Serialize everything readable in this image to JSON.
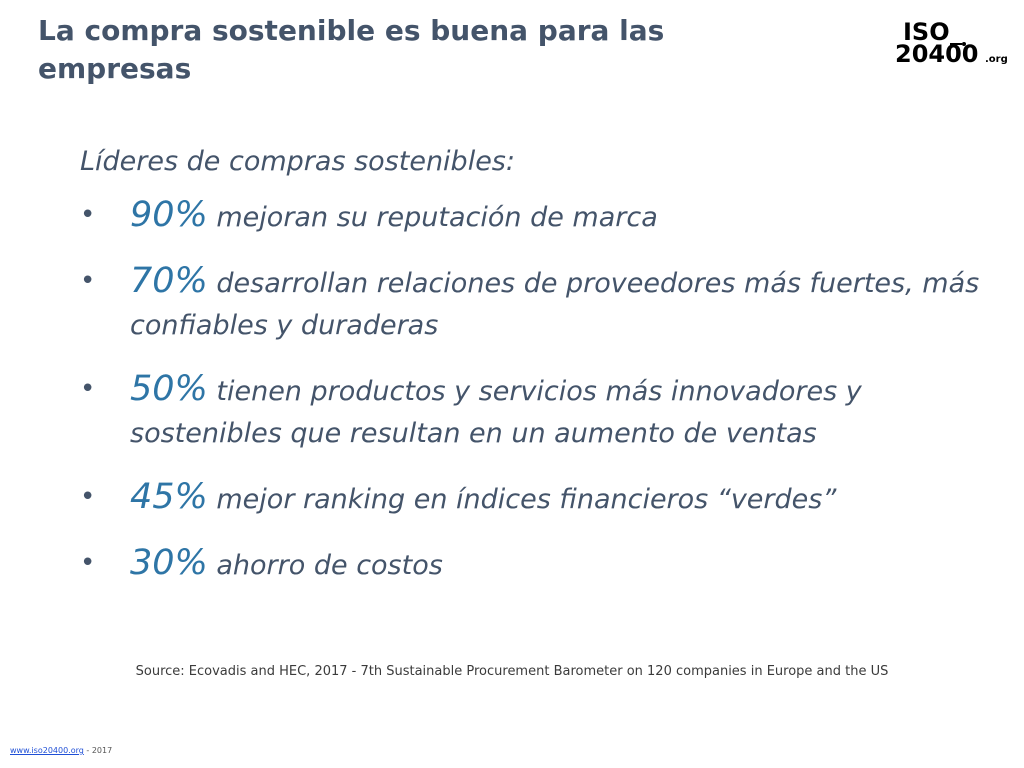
{
  "title": "La compra sostenible es buena para las empresas",
  "logo": {
    "line1": "ISO",
    "line2": "20400",
    "suffix": ".org"
  },
  "subheading": "Líderes de compras sostenibles:",
  "bullet_symbol": "•",
  "bullets": [
    {
      "percent": "90%",
      "text": " mejoran su reputación de marca"
    },
    {
      "percent": "70%",
      "text": " desarrollan relaciones de proveedores más fuertes, más confiables y duraderas"
    },
    {
      "percent": "50%",
      "text": " tienen productos y servicios más innovadores y sostenibles que resultan en un aumento de ventas"
    },
    {
      "percent": "45%",
      "text": " mejor ranking en índices financieros “verdes”"
    },
    {
      "percent": "30%",
      "text": " ahorro de costos"
    }
  ],
  "source": "Source: Ecovadis and HEC, 2017 - 7th Sustainable Procurement Barometer on 120 companies in Europe and the US",
  "footer": {
    "link": "www.iso20400.org",
    "suffix": " - 2017"
  },
  "colors": {
    "title": "#44546a",
    "percent": "#2e75a6",
    "link": "#1f4fd6"
  }
}
